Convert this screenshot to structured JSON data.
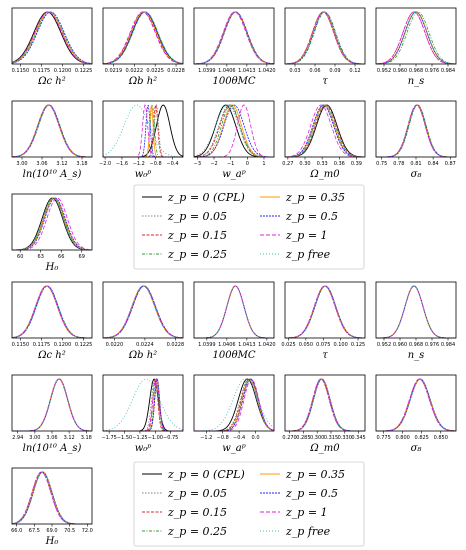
{
  "colors": {
    "series": [
      "#000000",
      "#7f7f7f",
      "#d62728",
      "#2ca02c",
      "#ff9900",
      "#1f1fff",
      "#e01fe0",
      "#30c0b0"
    ],
    "frame": "#000000",
    "legend_border": "#cccccc"
  },
  "chart_data": [
    {
      "type": "line",
      "subtype": "posterior-density-grid",
      "legend": {
        "placement": "lower-center",
        "entries": [
          "z_p = 0 (CPL)",
          "z_p = 0.05",
          "z_p = 0.15",
          "z_p = 0.25",
          "z_p = 0.35",
          "z_p = 0.5",
          "z_p = 1",
          "z_p free"
        ]
      },
      "panels": [
        {
          "param": "Ωc h²",
          "ticks": [
            "0.1150",
            "0.1175",
            "0.1200",
            "0.1225"
          ],
          "xlim": [
            0.114,
            0.1235
          ],
          "means": [
            0.1182,
            0.1183,
            0.1184,
            0.1185,
            0.1184,
            0.1186,
            0.1183,
            0.1185
          ],
          "sigma": 0.0016
        },
        {
          "param": "Ωb h²",
          "ticks": [
            "0.0219",
            "0.0222",
            "0.0225",
            "0.0228"
          ],
          "xlim": [
            0.02175,
            0.0229
          ],
          "means": [
            0.02235,
            0.02234,
            0.02233,
            0.02236,
            0.02234,
            0.02235,
            0.02232,
            0.02236
          ],
          "sigma": 0.00018
        },
        {
          "param": "100θMC",
          "ticks": [
            "1.0399",
            "1.0406",
            "1.0413",
            "1.0420"
          ],
          "xlim": [
            1.03945,
            1.04225
          ],
          "means": [
            1.0409,
            1.0409,
            1.04092,
            1.04088,
            1.0409,
            1.04091,
            1.04087,
            1.0409
          ],
          "sigma": 0.0004
        },
        {
          "param": "τ",
          "ticks": [
            "0.03",
            "0.06",
            "0.09",
            "0.12"
          ],
          "xlim": [
            0.015,
            0.135
          ],
          "means": [
            0.073,
            0.074,
            0.072,
            0.075,
            0.073,
            0.074,
            0.072,
            0.074
          ],
          "sigma": 0.016
        },
        {
          "param": "n_s",
          "ticks": [
            "0.952",
            "0.960",
            "0.968",
            "0.976",
            "0.984"
          ],
          "xlim": [
            0.948,
            0.988
          ],
          "means": [
            0.968,
            0.968,
            0.967,
            0.969,
            0.968,
            0.968,
            0.967,
            0.968
          ],
          "sigma": 0.0055
        },
        {
          "param": "ln(10¹⁰ A_s)",
          "ticks": [
            "3.00",
            "3.06",
            "3.12",
            "3.18"
          ],
          "xlim": [
            2.97,
            3.21
          ],
          "means": [
            3.08,
            3.081,
            3.079,
            3.082,
            3.08,
            3.081,
            3.079,
            3.081
          ],
          "sigma": 0.032
        },
        {
          "param": "w₀ᵖ",
          "ticks": [
            "−2.0",
            "−1.6",
            "−1.2",
            "−0.8",
            "−0.4"
          ],
          "xlim": [
            -2.05,
            -0.15
          ],
          "means": [
            -0.62,
            -0.78,
            -0.8,
            -0.88,
            -0.9,
            -0.98,
            -1.05,
            -1.25
          ],
          "sigma": [
            0.16,
            0.05,
            0.05,
            0.05,
            0.04,
            0.05,
            0.06,
            0.3
          ]
        },
        {
          "param": "w_aᵖ",
          "ticks": [
            "−3",
            "−2",
            "−1",
            "0",
            "1"
          ],
          "xlim": [
            -3.2,
            1.6
          ],
          "means": [
            -1.3,
            -1.1,
            -1.05,
            -1.0,
            -0.9,
            -0.8,
            -0.2,
            -1.2
          ],
          "sigma": [
            0.6,
            0.6,
            0.6,
            0.55,
            0.55,
            0.6,
            0.4,
            0.7
          ]
        },
        {
          "param": "Ω_m0",
          "ticks": [
            "0.27",
            "0.30",
            "0.33",
            "0.36",
            "0.39"
          ],
          "xlim": [
            0.265,
            0.405
          ],
          "means": [
            0.338,
            0.337,
            0.336,
            0.334,
            0.333,
            0.332,
            0.328,
            0.335
          ],
          "sigma": 0.018
        },
        {
          "param": "σ₈",
          "ticks": [
            "0.75",
            "0.78",
            "0.81",
            "0.84",
            "0.87"
          ],
          "xlim": [
            0.74,
            0.88
          ],
          "means": [
            0.812,
            0.812,
            0.811,
            0.813,
            0.812,
            0.812,
            0.811,
            0.812
          ],
          "sigma": 0.015
        },
        {
          "param": "H₀",
          "ticks": [
            "60",
            "63",
            "66",
            "69"
          ],
          "xlim": [
            58.8,
            70.5
          ],
          "means": [
            64.7,
            64.8,
            64.9,
            64.9,
            65.0,
            65.1,
            65.4,
            64.8
          ],
          "sigma": 1.5
        }
      ]
    },
    {
      "type": "line",
      "subtype": "posterior-density-grid",
      "legend": {
        "placement": "lower-center",
        "entries": [
          "z_p = 0 (CPL)",
          "z_p = 0.05",
          "z_p = 0.15",
          "z_p = 0.25",
          "z_p = 0.35",
          "z_p = 0.5",
          "z_p = 1",
          "z_p free"
        ]
      },
      "panels": [
        {
          "param": "Ωc h²",
          "ticks": [
            "0.1150",
            "0.1175",
            "0.1200",
            "0.1225"
          ],
          "xlim": [
            0.114,
            0.1235
          ],
          "means": [
            0.1181,
            0.1182,
            0.1181,
            0.1182,
            0.1181,
            0.1182,
            0.1181,
            0.1182
          ],
          "sigma": 0.0013
        },
        {
          "param": "Ωb h²",
          "ticks": [
            "0.0220",
            "0.0224",
            "0.0228"
          ],
          "xlim": [
            0.02185,
            0.0229
          ],
          "means": [
            0.02238,
            0.02238,
            0.02239,
            0.02238,
            0.02238,
            0.02239,
            0.02238,
            0.02238
          ],
          "sigma": 0.00015
        },
        {
          "param": "100θMC",
          "ticks": [
            "1.0399",
            "1.0406",
            "1.0413",
            "1.0420"
          ],
          "xlim": [
            1.03945,
            1.04225
          ],
          "means": [
            1.0409,
            1.0409,
            1.0409,
            1.0409,
            1.0409,
            1.0409,
            1.0409,
            1.0409
          ],
          "sigma": 0.0003
        },
        {
          "param": "τ",
          "ticks": [
            "0.025",
            "0.050",
            "0.075",
            "0.100",
            "0.125"
          ],
          "xlim": [
            0.02,
            0.135
          ],
          "means": [
            0.078,
            0.078,
            0.077,
            0.078,
            0.078,
            0.078,
            0.077,
            0.078
          ],
          "sigma": 0.015
        },
        {
          "param": "n_s",
          "ticks": [
            "0.952",
            "0.960",
            "0.968",
            "0.976",
            "0.984"
          ],
          "xlim": [
            0.948,
            0.988
          ],
          "means": [
            0.967,
            0.967,
            0.967,
            0.967,
            0.967,
            0.967,
            0.967,
            0.967
          ],
          "sigma": 0.0045
        },
        {
          "param": "ln(10¹⁰ A_s)",
          "ticks": [
            "2.94",
            "3.00",
            "3.06",
            "3.12",
            "3.18"
          ],
          "xlim": [
            2.92,
            3.2
          ],
          "means": [
            3.085,
            3.085,
            3.084,
            3.085,
            3.085,
            3.085,
            3.084,
            3.085
          ],
          "sigma": 0.03
        },
        {
          "param": "w₀ᵖ",
          "ticks": [
            "−1.75",
            "−1.50",
            "−1.25",
            "−1.00",
            "−0.75"
          ],
          "xlim": [
            -1.85,
            -0.55
          ],
          "means": [
            -1.02,
            -1.01,
            -1.0,
            -0.98,
            -0.97,
            -0.97,
            -0.99,
            -1.15
          ],
          "sigma": [
            0.07,
            0.05,
            0.04,
            0.04,
            0.04,
            0.04,
            0.05,
            0.22
          ]
        },
        {
          "param": "w_aᵖ",
          "ticks": [
            "−1.2",
            "−0.8",
            "−0.4",
            "0.0"
          ],
          "xlim": [
            -1.5,
            0.45
          ],
          "means": [
            -0.2,
            -0.17,
            -0.15,
            -0.14,
            -0.13,
            -0.12,
            -0.1,
            -0.25
          ],
          "sigma": [
            0.22,
            0.2,
            0.2,
            0.19,
            0.19,
            0.19,
            0.18,
            0.3
          ]
        },
        {
          "param": "Ω_m0",
          "ticks": [
            "0.270",
            "0.285",
            "0.300",
            "0.315",
            "0.330",
            "0.345"
          ],
          "xlim": [
            0.265,
            0.352
          ],
          "means": [
            0.305,
            0.305,
            0.304,
            0.305,
            0.305,
            0.305,
            0.304,
            0.305
          ],
          "sigma": 0.009
        },
        {
          "param": "σ₈",
          "ticks": [
            "0.775",
            "0.800",
            "0.825",
            "0.850"
          ],
          "xlim": [
            0.765,
            0.87
          ],
          "means": [
            0.823,
            0.823,
            0.822,
            0.823,
            0.823,
            0.823,
            0.822,
            0.823
          ],
          "sigma": 0.013
        },
        {
          "param": "H₀",
          "ticks": [
            "66.0",
            "67.5",
            "69.0",
            "70.5",
            "72.0"
          ],
          "xlim": [
            65.6,
            72.4
          ],
          "means": [
            68.2,
            68.2,
            68.1,
            68.2,
            68.2,
            68.2,
            68.1,
            68.2
          ],
          "sigma": 0.8
        }
      ]
    }
  ]
}
